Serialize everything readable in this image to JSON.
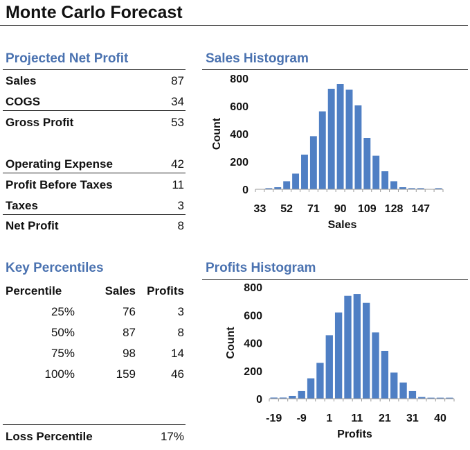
{
  "title": "Monte Carlo Forecast",
  "projected_net_profit": {
    "heading": "Projected Net Profit",
    "rows": [
      {
        "label": "Sales",
        "value": "87"
      },
      {
        "label": "COGS",
        "value": "34"
      },
      {
        "label": "Gross Profit",
        "value": "53"
      },
      {
        "label": "Operating Expense",
        "value": "42"
      },
      {
        "label": "Profit Before Taxes",
        "value": "11"
      },
      {
        "label": "Taxes",
        "value": "3"
      },
      {
        "label": "Net Profit",
        "value": "8"
      }
    ]
  },
  "key_percentiles": {
    "heading": "Key Percentiles",
    "headers": [
      "Percentile",
      "Sales",
      "Profits"
    ],
    "rows": [
      [
        "25%",
        "76",
        "3"
      ],
      [
        "50%",
        "87",
        "8"
      ],
      [
        "75%",
        "98",
        "14"
      ],
      [
        "100%",
        "159",
        "46"
      ]
    ],
    "loss_label": "Loss Percentile",
    "loss_value": "17%"
  },
  "chart_data": [
    {
      "type": "bar",
      "title": "Sales Histogram",
      "xlabel": "Sales",
      "ylabel": "Count",
      "ylim": [
        0,
        800
      ],
      "yticks": [
        "0",
        "200",
        "400",
        "600",
        "800"
      ],
      "tick_labels": [
        "33",
        "",
        "",
        "52",
        "",
        "",
        "71",
        "",
        "",
        "90",
        "",
        "",
        "109",
        "",
        "",
        "128",
        "",
        "",
        "147",
        "",
        ""
      ],
      "values": [
        2,
        8,
        15,
        58,
        113,
        250,
        383,
        562,
        725,
        760,
        718,
        605,
        370,
        242,
        130,
        58,
        15,
        8,
        8,
        0,
        8
      ],
      "color": "#4f7fc4"
    },
    {
      "type": "bar",
      "title": "Profits Histogram",
      "xlabel": "Profits",
      "ylabel": "Count",
      "ylim": [
        0,
        800
      ],
      "yticks": [
        "0",
        "200",
        "400",
        "600",
        "800"
      ],
      "tick_labels": [
        "-19",
        "",
        "",
        "-9",
        "",
        "",
        "1",
        "",
        "",
        "11",
        "",
        "",
        "21",
        "",
        "",
        "31",
        "",
        "",
        "40",
        ""
      ],
      "values": [
        8,
        8,
        20,
        55,
        146,
        257,
        455,
        618,
        737,
        750,
        687,
        475,
        343,
        187,
        116,
        55,
        12,
        7,
        7,
        7
      ],
      "color": "#4f7fc4"
    }
  ]
}
